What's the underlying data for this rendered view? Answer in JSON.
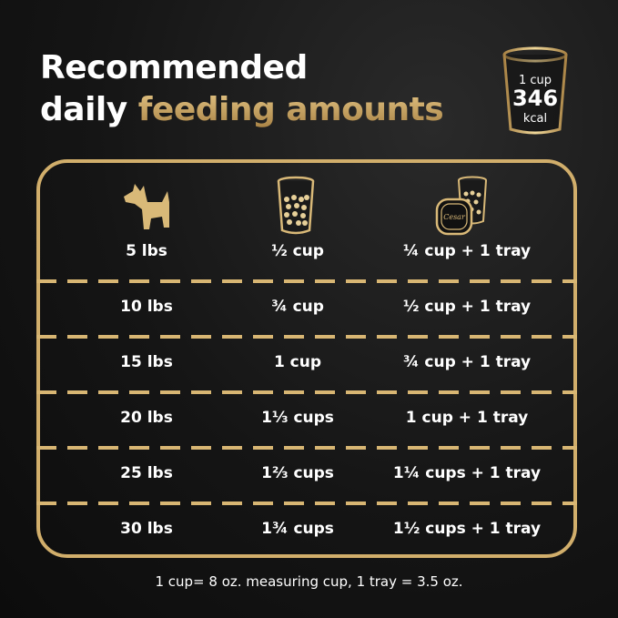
{
  "title": {
    "line1": "Recommended",
    "line2_white": "daily",
    "line2_gold": "feeding amounts"
  },
  "badge": {
    "top": "1 cup",
    "value": "346",
    "unit": "kcal"
  },
  "colors": {
    "gold": "#d1ae6b",
    "background": "#151515",
    "text": "#ffffff"
  },
  "icons": {
    "col1": "dog-icon",
    "col2": "kibble-cup-icon",
    "col3": "tray-and-cup-icon",
    "tray_logo": "Cesar"
  },
  "rows": [
    {
      "weight": "5 lbs",
      "dry": "½ cup",
      "mixed": "¼ cup + 1 tray"
    },
    {
      "weight": "10 lbs",
      "dry": "¾ cup",
      "mixed": "½ cup + 1 tray"
    },
    {
      "weight": "15 lbs",
      "dry": "1 cup",
      "mixed": "¾ cup + 1 tray"
    },
    {
      "weight": "20 lbs",
      "dry": "1⅓ cups",
      "mixed": "1 cup + 1 tray"
    },
    {
      "weight": "25 lbs",
      "dry": "1⅔ cups",
      "mixed": "1¼ cups + 1 tray"
    },
    {
      "weight": "30 lbs",
      "dry": "1¾ cups",
      "mixed": "1½ cups + 1 tray"
    }
  ],
  "footer": "1 cup= 8 oz. measuring cup, 1 tray = 3.5 oz."
}
